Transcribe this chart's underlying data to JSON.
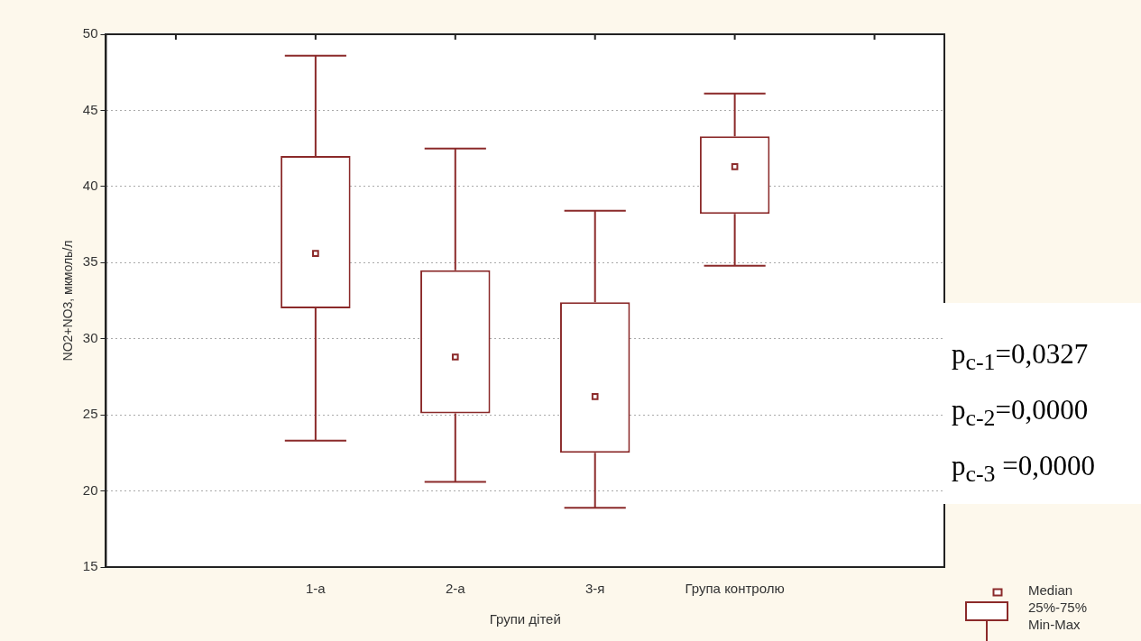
{
  "chart_data": {
    "type": "box",
    "xlabel": "Групи дітей",
    "ylabel": "NO2+NO3, мкмоль/л",
    "categories": [
      null,
      "1-а",
      "2-а",
      "3-я",
      "Група контролю",
      null
    ],
    "color": "#8b2a2a",
    "boxes": [
      null,
      {
        "low": 23.3,
        "q1": 32.0,
        "median": 35.6,
        "q3": 42.0,
        "high": 48.6
      },
      {
        "low": 20.6,
        "q1": 25.1,
        "median": 28.8,
        "q3": 34.5,
        "high": 42.5
      },
      {
        "low": 18.9,
        "q1": 22.5,
        "median": 26.2,
        "q3": 32.4,
        "high": 38.4
      },
      {
        "low": 34.8,
        "q1": 38.2,
        "median": 41.3,
        "q3": 43.3,
        "high": 46.1
      },
      null
    ],
    "ylim": [
      15,
      50
    ],
    "yticks": [
      15,
      20,
      25,
      30,
      35,
      40,
      45,
      50
    ],
    "grid": "y",
    "annotations": [
      "p$_{c-1}$=0,0327",
      "p$_{c-2}$=0,0000",
      "p$_{c-3}$ =0,0000",
      "Median",
      "25%-75%",
      "Min-Max"
    ]
  }
}
